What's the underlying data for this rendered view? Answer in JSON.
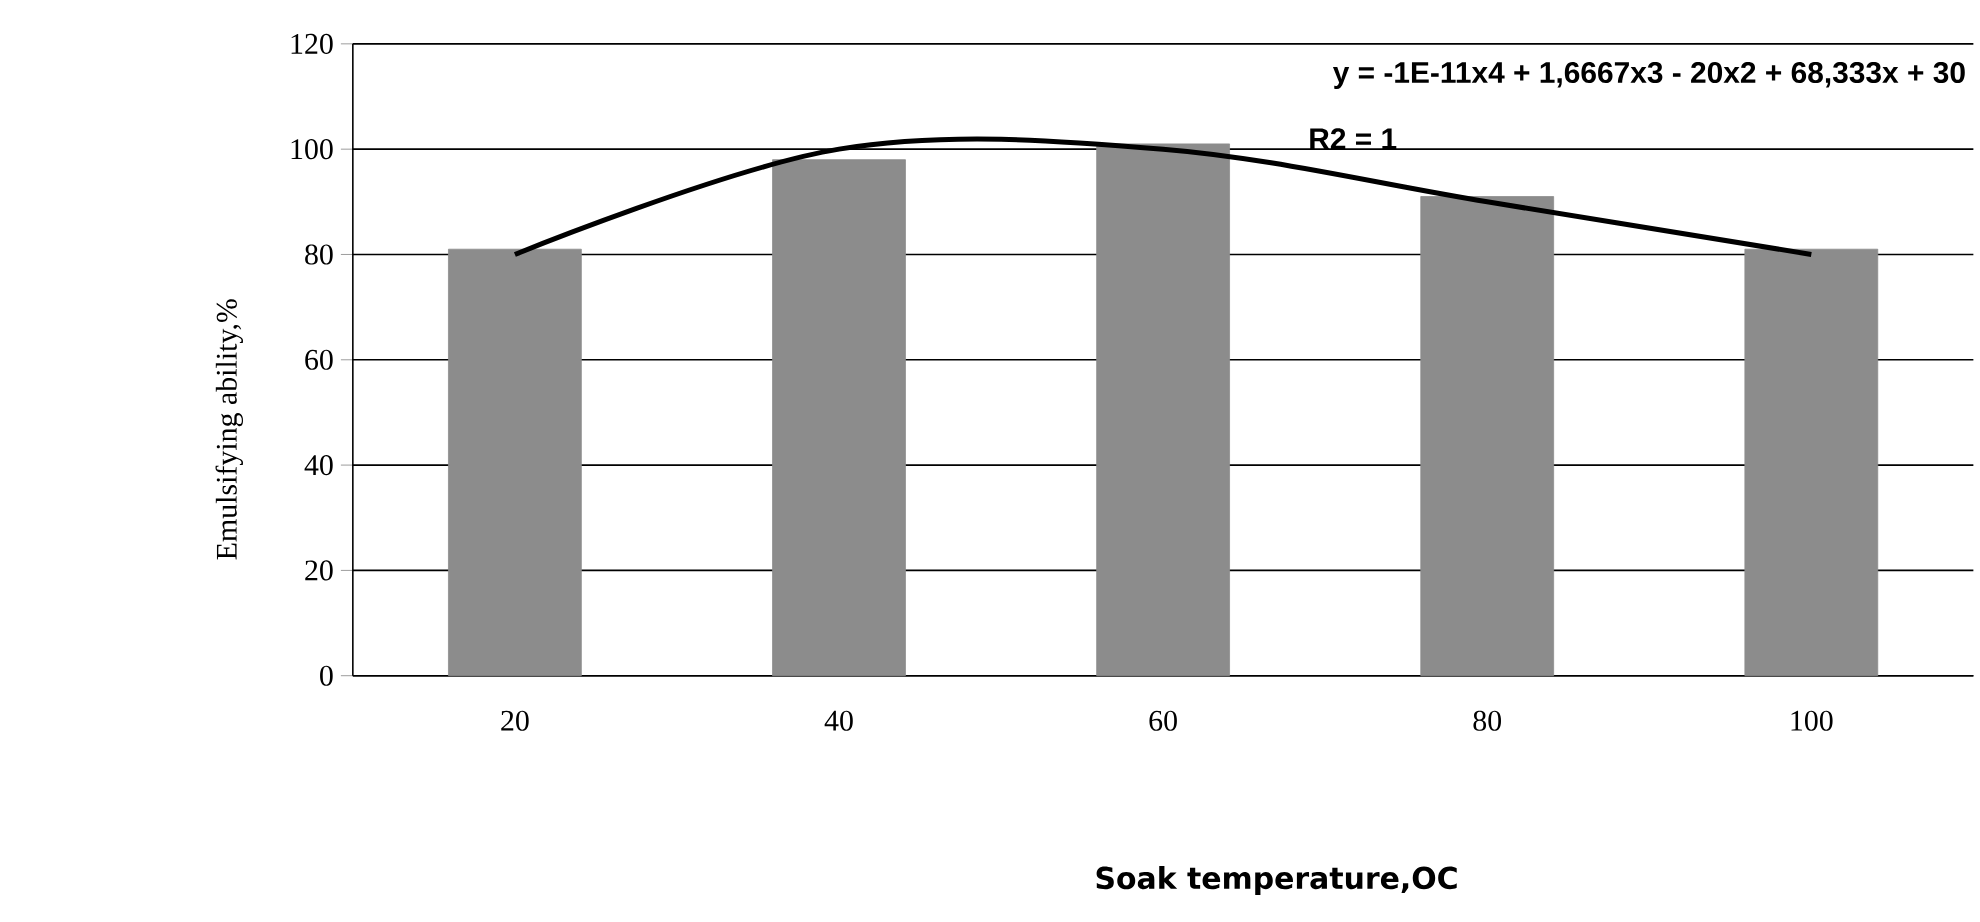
{
  "chart_data": {
    "type": "bar",
    "xlabel": "Soak temperature,OC",
    "ylabel": "Emulsifying ability,%",
    "categories": [
      "20",
      "40",
      "60",
      "80",
      "100"
    ],
    "series": [
      {
        "color": "#8c8c8c",
        "values": [
          81,
          98,
          101,
          91,
          81
        ]
      },
      {
        "type": "line",
        "color": "#000000",
        "marker": "none",
        "values": [
          80,
          100,
          100,
          90,
          80
        ]
      }
    ],
    "annotations": [
      "y = -1E-11x4 + 1,6667x3 - 20x2 + 68,333x + 30",
      "R2 = 1"
    ],
    "ylim": [
      0,
      120
    ],
    "yticks": [
      0,
      20,
      40,
      60,
      80,
      100,
      120
    ],
    "grid": "y"
  }
}
